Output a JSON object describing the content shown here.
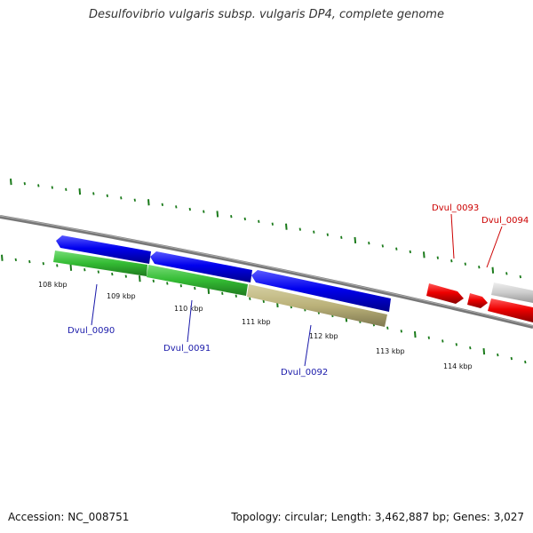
{
  "title": "Desulfovibrio vulgaris subsp. vulgaris DP4, complete genome",
  "footer": {
    "accession": "Accession: NC_008751",
    "info": "Topology: circular; Length: 3,462,887 bp; Genes: 3,027"
  },
  "colors": {
    "backbone": "#808080",
    "tick": "#1a7a1a",
    "forward_gene": "#dd0000",
    "reverse_gene": "#0000ee",
    "green_feature": "#33bb33",
    "olive_feature": "#bbb27a",
    "grey_feature": "#c8c8c8",
    "label_blue": "#1a1aaa",
    "label_red": "#cc0000"
  },
  "ticks": [
    {
      "label": "108 kbp"
    },
    {
      "label": "109 kbp"
    },
    {
      "label": "110 kbp"
    },
    {
      "label": "111 kbp"
    },
    {
      "label": "112 kbp"
    },
    {
      "label": "113 kbp"
    },
    {
      "label": "114 kbp"
    }
  ],
  "genes": [
    {
      "label": "Dvul_0090",
      "color": "label_blue"
    },
    {
      "label": "Dvul_0091",
      "color": "label_blue"
    },
    {
      "label": "Dvul_0092",
      "color": "label_blue"
    },
    {
      "label": "Dvul_0093",
      "color": "label_red"
    },
    {
      "label": "Dvul_0094",
      "color": "label_red"
    }
  ]
}
